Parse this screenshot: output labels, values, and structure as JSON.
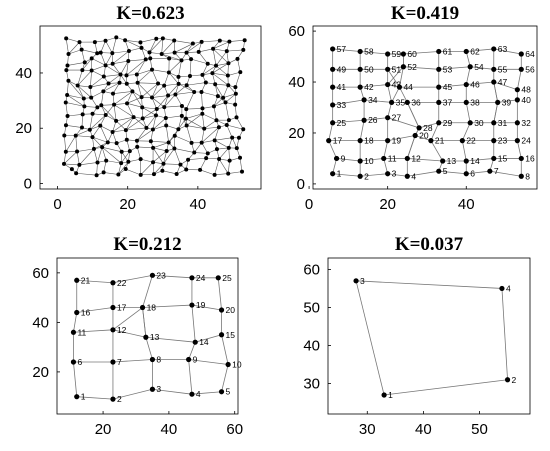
{
  "chart_data": [
    {
      "type": "scatter",
      "title": "K=0.623",
      "xlim": [
        -5,
        58
      ],
      "ylim": [
        -2,
        57
      ],
      "xticks": [
        0,
        20,
        40
      ],
      "yticks": [
        0,
        20,
        40
      ],
      "grid": false,
      "generated_grid": {
        "cols": [
          3,
          6.5,
          10,
          13.5,
          17,
          20.5,
          24,
          27.5,
          31,
          34.5,
          38,
          41.5,
          45,
          48.5,
          52
        ],
        "rows": [
          4,
          8,
          12,
          16,
          20,
          24,
          28,
          32,
          36,
          40,
          44,
          48,
          52
        ],
        "jitter": 1.4
      }
    },
    {
      "type": "scatter",
      "title": "K=0.419",
      "xlim": [
        1,
        58
      ],
      "ylim": [
        -2,
        62
      ],
      "xticks": [
        0,
        20,
        40
      ],
      "yticks": [
        0,
        20,
        40,
        60
      ],
      "grid": false,
      "points": [
        {
          "id": "1",
          "x": 6,
          "y": 4
        },
        {
          "id": "2",
          "x": 13,
          "y": 3
        },
        {
          "id": "3",
          "x": 20,
          "y": 4
        },
        {
          "id": "4",
          "x": 25,
          "y": 3
        },
        {
          "id": "5",
          "x": 33,
          "y": 5
        },
        {
          "id": "6",
          "x": 40,
          "y": 4
        },
        {
          "id": "7",
          "x": 46,
          "y": 5
        },
        {
          "id": "8",
          "x": 54,
          "y": 3
        },
        {
          "id": "9",
          "x": 7,
          "y": 10
        },
        {
          "id": "10",
          "x": 13,
          "y": 9
        },
        {
          "id": "11",
          "x": 19,
          "y": 10
        },
        {
          "id": "12",
          "x": 25,
          "y": 10
        },
        {
          "id": "13",
          "x": 34,
          "y": 9
        },
        {
          "id": "14",
          "x": 40,
          "y": 9
        },
        {
          "id": "15",
          "x": 47,
          "y": 10
        },
        {
          "id": "16",
          "x": 54,
          "y": 10
        },
        {
          "id": "17",
          "x": 5,
          "y": 17
        },
        {
          "id": "18",
          "x": 13,
          "y": 17
        },
        {
          "id": "19",
          "x": 20,
          "y": 17
        },
        {
          "id": "20",
          "x": 27,
          "y": 19
        },
        {
          "id": "21",
          "x": 31,
          "y": 17
        },
        {
          "id": "22",
          "x": 39,
          "y": 17
        },
        {
          "id": "23",
          "x": 47,
          "y": 17
        },
        {
          "id": "24",
          "x": 53,
          "y": 17
        },
        {
          "id": "25",
          "x": 6,
          "y": 24
        },
        {
          "id": "26",
          "x": 14,
          "y": 25
        },
        {
          "id": "27",
          "x": 20,
          "y": 26
        },
        {
          "id": "28",
          "x": 28,
          "y": 22
        },
        {
          "id": "29",
          "x": 33,
          "y": 24
        },
        {
          "id": "30",
          "x": 41,
          "y": 24
        },
        {
          "id": "31",
          "x": 47,
          "y": 24
        },
        {
          "id": "32",
          "x": 53,
          "y": 24
        },
        {
          "id": "33",
          "x": 6,
          "y": 31
        },
        {
          "id": "34",
          "x": 14,
          "y": 33
        },
        {
          "id": "35",
          "x": 21,
          "y": 32
        },
        {
          "id": "36",
          "x": 25,
          "y": 32
        },
        {
          "id": "37",
          "x": 33,
          "y": 32
        },
        {
          "id": "38",
          "x": 40,
          "y": 32
        },
        {
          "id": "39",
          "x": 48,
          "y": 32
        },
        {
          "id": "40",
          "x": 53,
          "y": 33
        },
        {
          "id": "41",
          "x": 6,
          "y": 38
        },
        {
          "id": "42",
          "x": 13,
          "y": 38
        },
        {
          "id": "43",
          "x": 20,
          "y": 39
        },
        {
          "id": "44",
          "x": 23,
          "y": 38
        },
        {
          "id": "45",
          "x": 33,
          "y": 38
        },
        {
          "id": "46",
          "x": 40,
          "y": 39
        },
        {
          "id": "47",
          "x": 47,
          "y": 40
        },
        {
          "id": "48",
          "x": 53,
          "y": 37
        },
        {
          "id": "49",
          "x": 6,
          "y": 45
        },
        {
          "id": "50",
          "x": 13,
          "y": 45
        },
        {
          "id": "51",
          "x": 20,
          "y": 45
        },
        {
          "id": "52",
          "x": 24,
          "y": 46
        },
        {
          "id": "53",
          "x": 33,
          "y": 45
        },
        {
          "id": "54",
          "x": 41,
          "y": 46
        },
        {
          "id": "55",
          "x": 47,
          "y": 45
        },
        {
          "id": "56",
          "x": 54,
          "y": 45
        },
        {
          "id": "57",
          "x": 6,
          "y": 53
        },
        {
          "id": "58",
          "x": 13,
          "y": 52
        },
        {
          "id": "59",
          "x": 20,
          "y": 51
        },
        {
          "id": "60",
          "x": 24,
          "y": 51
        },
        {
          "id": "61",
          "x": 33,
          "y": 52
        },
        {
          "id": "62",
          "x": 40,
          "y": 52
        },
        {
          "id": "63",
          "x": 47,
          "y": 53
        },
        {
          "id": "64",
          "x": 54,
          "y": 51
        }
      ],
      "grid_edges": true,
      "extra_edges": [
        [
          "52",
          "60"
        ],
        [
          "51",
          "44"
        ],
        [
          "43",
          "52"
        ],
        [
          "28",
          "20"
        ],
        [
          "20",
          "12"
        ],
        [
          "28",
          "36"
        ],
        [
          "39",
          "47"
        ],
        [
          "31",
          "39"
        ],
        [
          "35",
          "44"
        ]
      ]
    },
    {
      "type": "scatter",
      "title": "K=0.212",
      "xlim": [
        6,
        61
      ],
      "ylim": [
        3,
        66
      ],
      "xticks": [
        20,
        40,
        60
      ],
      "yticks": [
        20,
        40,
        60
      ],
      "grid": false,
      "points": [
        {
          "id": "1",
          "x": 12,
          "y": 10
        },
        {
          "id": "2",
          "x": 23,
          "y": 9
        },
        {
          "id": "3",
          "x": 35,
          "y": 13
        },
        {
          "id": "4",
          "x": 47,
          "y": 11
        },
        {
          "id": "5",
          "x": 56,
          "y": 12
        },
        {
          "id": "6",
          "x": 11,
          "y": 24
        },
        {
          "id": "7",
          "x": 23,
          "y": 24
        },
        {
          "id": "8",
          "x": 35,
          "y": 25
        },
        {
          "id": "9",
          "x": 46,
          "y": 25
        },
        {
          "id": "10",
          "x": 58,
          "y": 23
        },
        {
          "id": "11",
          "x": 11,
          "y": 36
        },
        {
          "id": "12",
          "x": 23,
          "y": 37
        },
        {
          "id": "13",
          "x": 33,
          "y": 34
        },
        {
          "id": "14",
          "x": 48,
          "y": 32
        },
        {
          "id": "15",
          "x": 56,
          "y": 35
        },
        {
          "id": "16",
          "x": 12,
          "y": 44
        },
        {
          "id": "17",
          "x": 23,
          "y": 46
        },
        {
          "id": "18",
          "x": 32,
          "y": 46
        },
        {
          "id": "19",
          "x": 47,
          "y": 47
        },
        {
          "id": "20",
          "x": 56,
          "y": 45
        },
        {
          "id": "21",
          "x": 12,
          "y": 57
        },
        {
          "id": "22",
          "x": 23,
          "y": 56
        },
        {
          "id": "23",
          "x": 35,
          "y": 59
        },
        {
          "id": "24",
          "x": 47,
          "y": 58
        },
        {
          "id": "25",
          "x": 55,
          "y": 58
        }
      ],
      "grid_edges": true,
      "extra_edges": [
        [
          "12",
          "18"
        ],
        [
          "13",
          "18"
        ]
      ]
    },
    {
      "type": "scatter",
      "title": "K=0.037",
      "xlim": [
        23,
        59
      ],
      "ylim": [
        22,
        63
      ],
      "xticks": [
        30,
        40,
        50
      ],
      "yticks": [
        30,
        40,
        50,
        60
      ],
      "grid": false,
      "points": [
        {
          "id": "1",
          "x": 33,
          "y": 27
        },
        {
          "id": "2",
          "x": 55,
          "y": 31
        },
        {
          "id": "3",
          "x": 28,
          "y": 57
        },
        {
          "id": "4",
          "x": 54,
          "y": 55
        }
      ],
      "edges": [
        [
          "3",
          "4"
        ],
        [
          "4",
          "2"
        ],
        [
          "2",
          "1"
        ],
        [
          "1",
          "3"
        ]
      ]
    }
  ]
}
